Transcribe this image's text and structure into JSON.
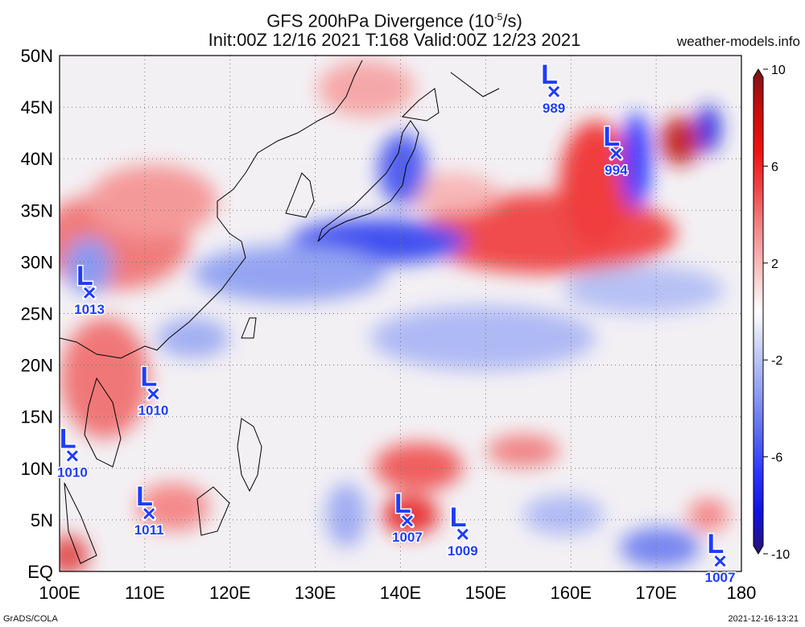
{
  "title": {
    "line1_prefix": "GFS 200hPa Divergence (10",
    "line1_exp": "-5",
    "line1_suffix": "/s)",
    "line2": "Init:00Z 12/16 2021 T:168 Valid:00Z 12/23 2021"
  },
  "brand": "weather-models.info",
  "footer": {
    "left": "GrADS/COLA",
    "right": "2021-12-16-13:21"
  },
  "map": {
    "lon_range": [
      100,
      180
    ],
    "lat_range": [
      0,
      50
    ],
    "lon_ticks": [
      {
        "value": 100,
        "label": "100E"
      },
      {
        "value": 110,
        "label": "110E"
      },
      {
        "value": 120,
        "label": "120E"
      },
      {
        "value": 130,
        "label": "130E"
      },
      {
        "value": 140,
        "label": "140E"
      },
      {
        "value": 150,
        "label": "150E"
      },
      {
        "value": 160,
        "label": "160E"
      },
      {
        "value": 170,
        "label": "170E"
      },
      {
        "value": 180,
        "label": "180"
      }
    ],
    "lat_ticks": [
      {
        "value": 0,
        "label": "EQ"
      },
      {
        "value": 5,
        "label": "5N"
      },
      {
        "value": 10,
        "label": "10N"
      },
      {
        "value": 15,
        "label": "15N"
      },
      {
        "value": 20,
        "label": "20N"
      },
      {
        "value": 25,
        "label": "25N"
      },
      {
        "value": 30,
        "label": "30N"
      },
      {
        "value": 35,
        "label": "35N"
      },
      {
        "value": 40,
        "label": "40N"
      },
      {
        "value": 45,
        "label": "45N"
      },
      {
        "value": 50,
        "label": "50N"
      }
    ],
    "grid": true
  },
  "colorbar": {
    "min": -10,
    "max": 10,
    "ticks": [
      {
        "value": 10,
        "label": "10"
      },
      {
        "value": 6,
        "label": "6"
      },
      {
        "value": 2,
        "label": "2"
      },
      {
        "value": -2,
        "label": "-2"
      },
      {
        "value": -6,
        "label": "-6"
      },
      {
        "value": -10,
        "label": "-10"
      }
    ],
    "colors": [
      "#2a1470",
      "#1010e0",
      "#2a36ff",
      "#5a6cf0",
      "#8f9ef2",
      "#c4ccf6",
      "#ffffff",
      "#f8c4c4",
      "#f48c8c",
      "#f04848",
      "#f01010",
      "#c80c0c",
      "#7a1418"
    ]
  },
  "lows": [
    {
      "lon": 103.5,
      "lat": 27.0,
      "label": "1013"
    },
    {
      "lon": 111.0,
      "lat": 17.2,
      "label": "1010"
    },
    {
      "lon": 101.5,
      "lat": 11.2,
      "label": "1010"
    },
    {
      "lon": 110.5,
      "lat": 5.6,
      "label": "1011"
    },
    {
      "lon": 140.8,
      "lat": 4.9,
      "label": "1007"
    },
    {
      "lon": 147.3,
      "lat": 3.6,
      "label": "1009"
    },
    {
      "lon": 158.0,
      "lat": 46.5,
      "label": "989"
    },
    {
      "lon": 165.3,
      "lat": 40.5,
      "label": "994"
    },
    {
      "lon": 177.5,
      "lat": 1.0,
      "label": "1007"
    }
  ]
}
